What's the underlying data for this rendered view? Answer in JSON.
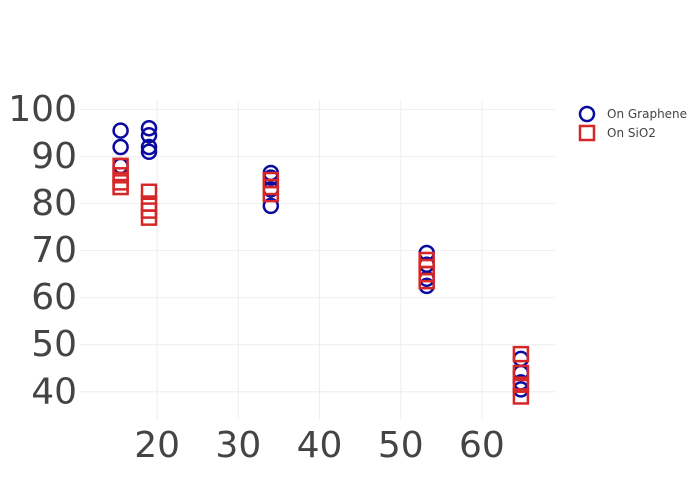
{
  "chart_data": {
    "type": "scatter",
    "title": "",
    "xlabel": "",
    "ylabel": "",
    "xlim": [
      10.5,
      69
    ],
    "ylim": [
      34,
      102
    ],
    "grid": true,
    "legend_position": "top-right",
    "x_ticks": [
      20,
      30,
      40,
      50,
      60
    ],
    "y_ticks": [
      40,
      50,
      60,
      70,
      80,
      90,
      100
    ],
    "series": [
      {
        "name": "On Graphene",
        "marker": "circle-open",
        "color": "#0a0aa0",
        "points": [
          {
            "x": 15.5,
            "y": 95.5
          },
          {
            "x": 15.5,
            "y": 92
          },
          {
            "x": 15.5,
            "y": 88
          },
          {
            "x": 19,
            "y": 96
          },
          {
            "x": 19,
            "y": 94.5
          },
          {
            "x": 19,
            "y": 92
          },
          {
            "x": 19,
            "y": 91
          },
          {
            "x": 34,
            "y": 86.5
          },
          {
            "x": 34,
            "y": 85.5
          },
          {
            "x": 34,
            "y": 83
          },
          {
            "x": 34,
            "y": 79.5
          },
          {
            "x": 53.2,
            "y": 69.5
          },
          {
            "x": 53.2,
            "y": 67
          },
          {
            "x": 53.2,
            "y": 64
          },
          {
            "x": 53.2,
            "y": 62.5
          },
          {
            "x": 64.8,
            "y": 47
          },
          {
            "x": 64.8,
            "y": 44
          },
          {
            "x": 64.8,
            "y": 42
          },
          {
            "x": 64.8,
            "y": 40.5
          }
        ]
      },
      {
        "name": "On SiO2",
        "marker": "square-open",
        "color": "#d62728",
        "points": [
          {
            "x": 15.5,
            "y": 88
          },
          {
            "x": 15.5,
            "y": 86
          },
          {
            "x": 15.5,
            "y": 84.5
          },
          {
            "x": 15.5,
            "y": 83.5
          },
          {
            "x": 19,
            "y": 82.5
          },
          {
            "x": 19,
            "y": 80
          },
          {
            "x": 19,
            "y": 78.5
          },
          {
            "x": 19,
            "y": 77
          },
          {
            "x": 34,
            "y": 85
          },
          {
            "x": 34,
            "y": 83.5
          },
          {
            "x": 34,
            "y": 82
          },
          {
            "x": 53.2,
            "y": 68
          },
          {
            "x": 53.2,
            "y": 66.5
          },
          {
            "x": 53.2,
            "y": 65
          },
          {
            "x": 53.2,
            "y": 63.5
          },
          {
            "x": 64.8,
            "y": 48
          },
          {
            "x": 64.8,
            "y": 44
          },
          {
            "x": 64.8,
            "y": 41.5
          },
          {
            "x": 64.8,
            "y": 39
          }
        ]
      }
    ]
  }
}
